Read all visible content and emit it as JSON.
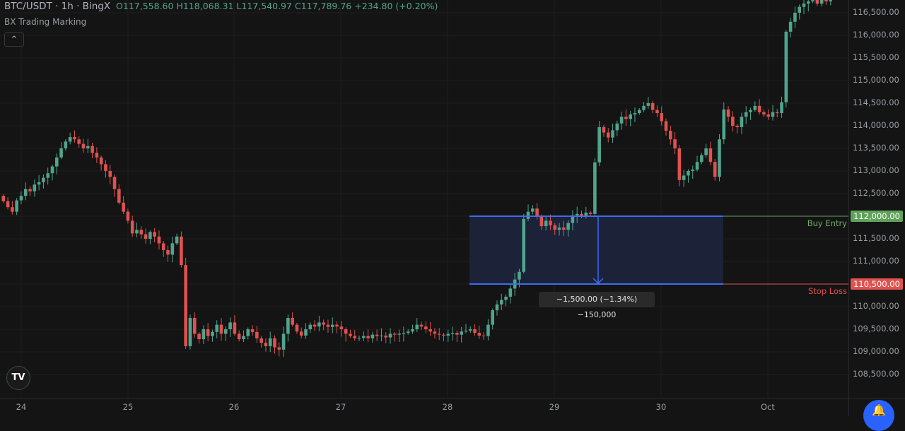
{
  "header": {
    "symbol": "BTC/USDT · 1h · BingX",
    "open_label": "O",
    "open": "117,558.60",
    "high_label": "H",
    "high": "118,068.31",
    "low_label": "L",
    "low": "117,540.97",
    "close_label": "C",
    "close": "117,789.76",
    "change": "+234.80 (+0.20%)"
  },
  "indicator": {
    "name": "BX Trading Marking",
    "collapse_icon": "chevron-up-icon"
  },
  "colors": {
    "up": "#4fa58e",
    "down": "#e0524f",
    "background": "#141414",
    "box": "#1c2238",
    "box_line": "#3d6cf2",
    "buy": "#5fa35a",
    "stop": "#e0524f"
  },
  "chart_data": {
    "type": "candlestick",
    "interval": "1h",
    "ylim": [
      108300,
      116800
    ],
    "grid": true,
    "x_tick_labels": [
      "24",
      "25",
      "26",
      "27",
      "28",
      "29",
      "30",
      "Oct"
    ],
    "y_tick_labels": [
      "116,500.00",
      "116,000.00",
      "115,500.00",
      "115,000.00",
      "114,500.00",
      "114,000.00",
      "113,500.00",
      "113,000.00",
      "112,500.00",
      "111,500.00",
      "111,000.00",
      "110,000.00",
      "109,500.00",
      "109,000.00",
      "108,500.00"
    ],
    "first_open": 112450,
    "closes": [
      112330,
      112200,
      112100,
      112350,
      112450,
      112600,
      112550,
      112700,
      112750,
      112850,
      112950,
      113100,
      113300,
      113500,
      113650,
      113750,
      113700,
      113600,
      113500,
      113550,
      113400,
      113300,
      113150,
      113000,
      112870,
      112600,
      112300,
      112100,
      111900,
      111620,
      111700,
      111600,
      111500,
      111650,
      111550,
      111400,
      111250,
      111150,
      111400,
      111550,
      110920,
      109125,
      109750,
      109400,
      109280,
      109500,
      109350,
      109440,
      109600,
      109400,
      109500,
      109650,
      109400,
      109280,
      109350,
      109500,
      109440,
      109300,
      109200,
      109125,
      109300,
      109100,
      109050,
      109400,
      109750,
      109600,
      109450,
      109360,
      109500,
      109600,
      109560,
      109650,
      109600,
      109550,
      109600,
      109560,
      109500,
      109400,
      109350,
      109300,
      109310,
      109350,
      109300,
      109380,
      109350,
      109360,
      109320,
      109400,
      109380,
      109400,
      109420,
      109450,
      109500,
      109600,
      109560,
      109500,
      109450,
      109400,
      109380,
      109360,
      109400,
      109420,
      109380,
      109450,
      109470,
      109500,
      109420,
      109360,
      109350,
      109600,
      109920,
      110050,
      110150,
      110220,
      110400,
      110600,
      110770,
      111940,
      112100,
      112170,
      112000,
      111780,
      111900,
      111800,
      111700,
      111750,
      111700,
      111850,
      112020,
      112050,
      112000,
      112080,
      112050,
      113190,
      113970,
      113850,
      113740,
      113900,
      114050,
      114200,
      114150,
      114250,
      114280,
      114350,
      114440,
      114500,
      114350,
      114280,
      114100,
      113890,
      113700,
      113500,
      112800,
      112900,
      113000,
      113030,
      113200,
      113350,
      113500,
      113200,
      112870,
      113700,
      114360,
      114200,
      114000,
      113970,
      114200,
      114300,
      114350,
      114440,
      114300,
      114250,
      114200,
      114300,
      114280,
      114520,
      116080,
      116300,
      116500,
      116630,
      116700,
      116750,
      116780,
      116700,
      116800,
      116750,
      116780
    ],
    "position": {
      "entry_price": 112000,
      "stop_price": 110500,
      "entry_label": "Buy Entry",
      "stop_label": "Stop Loss",
      "entry_badge": "112,000.00",
      "stop_badge": "110,500.00",
      "measure": "−1,500.00 (−1.34%) −150,000"
    }
  },
  "logo": {
    "text": "TV"
  },
  "fab_icon": "bell-plus-icon"
}
